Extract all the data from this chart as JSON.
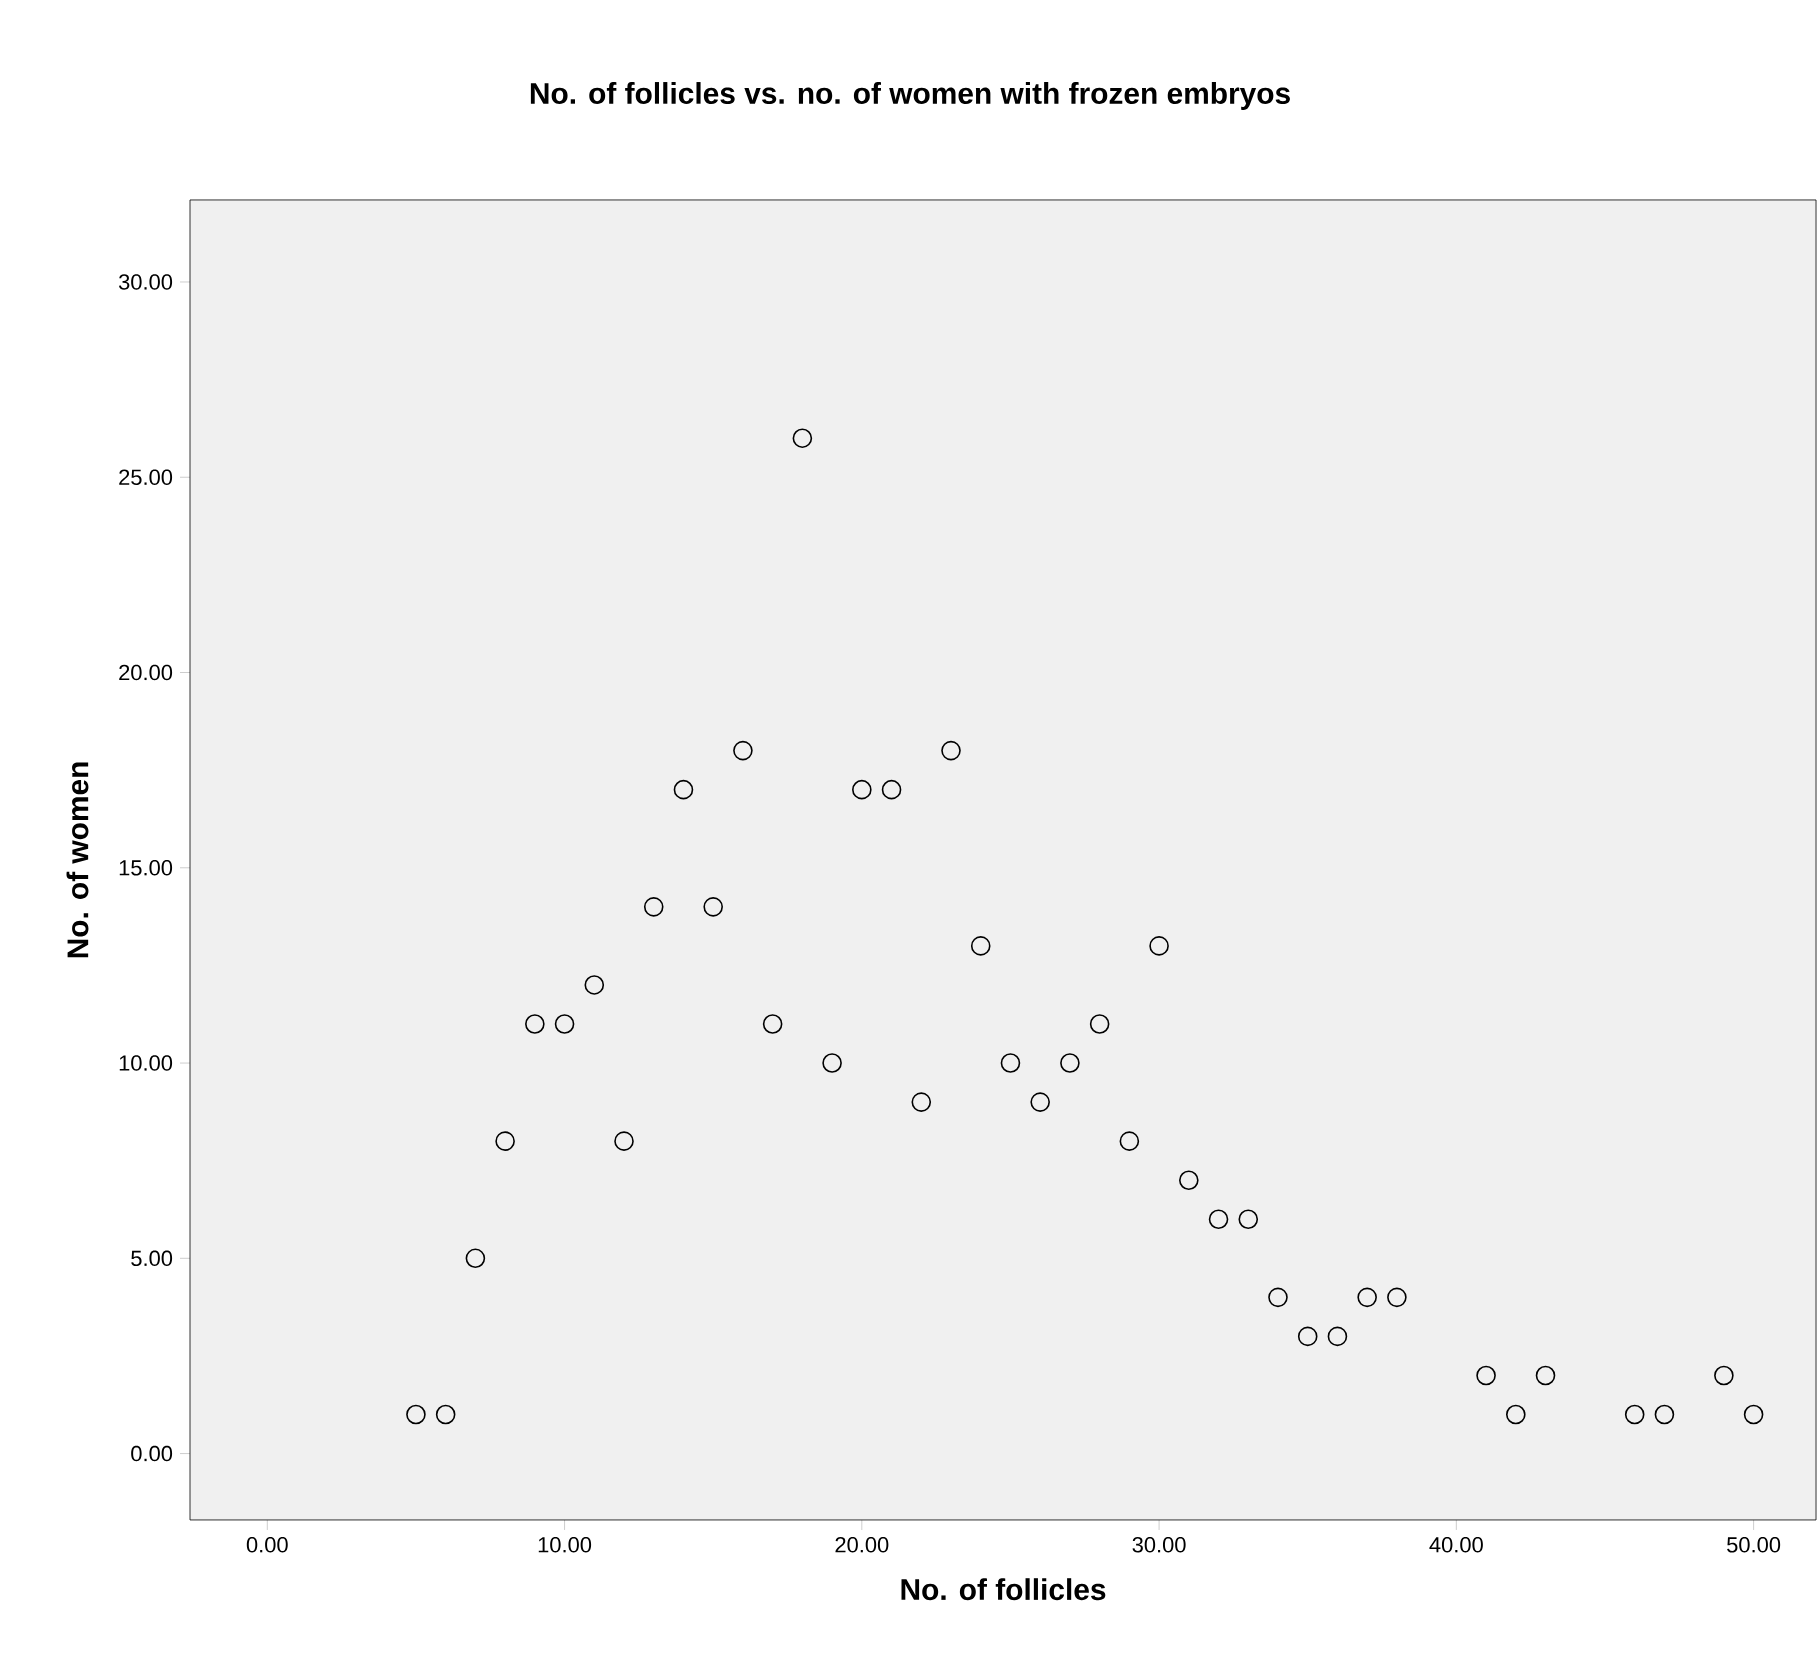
{
  "chart_data": {
    "type": "scatter",
    "title": "No. of follicles vs. no. of women with frozen embryos",
    "xlabel": "No. of follicles",
    "ylabel": "No. of women",
    "x": [
      5,
      6,
      7,
      8,
      9,
      10,
      11,
      12,
      13,
      14,
      15,
      16,
      17,
      18,
      19,
      20,
      21,
      22,
      23,
      24,
      25,
      26,
      27,
      28,
      29,
      30,
      31,
      32,
      33,
      34,
      35,
      36,
      37,
      38,
      41,
      42,
      43,
      46,
      47,
      49,
      50
    ],
    "values": [
      1,
      1,
      5,
      8,
      11,
      11,
      12,
      8,
      14,
      17,
      14,
      18,
      11,
      26,
      10,
      17,
      17,
      9,
      18,
      13,
      10,
      9,
      10,
      11,
      8,
      13,
      7,
      6,
      6,
      4,
      3,
      3,
      4,
      4,
      2,
      1,
      2,
      1,
      1,
      2,
      1
    ],
    "color": "#000000",
    "marker": "circle",
    "grid": false,
    "xlim": [
      -2.6,
      52.1
    ],
    "ylim": [
      -1.7,
      32.1
    ],
    "xticks": [
      {
        "value": 0,
        "label": "0.00"
      },
      {
        "value": 10,
        "label": "10.00"
      },
      {
        "value": 20,
        "label": "20.00"
      },
      {
        "value": 30,
        "label": "30.00"
      },
      {
        "value": 40,
        "label": "40.00"
      },
      {
        "value": 50,
        "label": "50.00"
      }
    ],
    "yticks": [
      {
        "value": 0,
        "label": "0.00"
      },
      {
        "value": 5,
        "label": "5.00"
      },
      {
        "value": 10,
        "label": "10.00"
      },
      {
        "value": 15,
        "label": "15.00"
      },
      {
        "value": 20,
        "label": "20.00"
      },
      {
        "value": 25,
        "label": "25.00"
      },
      {
        "value": 30,
        "label": "30.00"
      }
    ]
  }
}
